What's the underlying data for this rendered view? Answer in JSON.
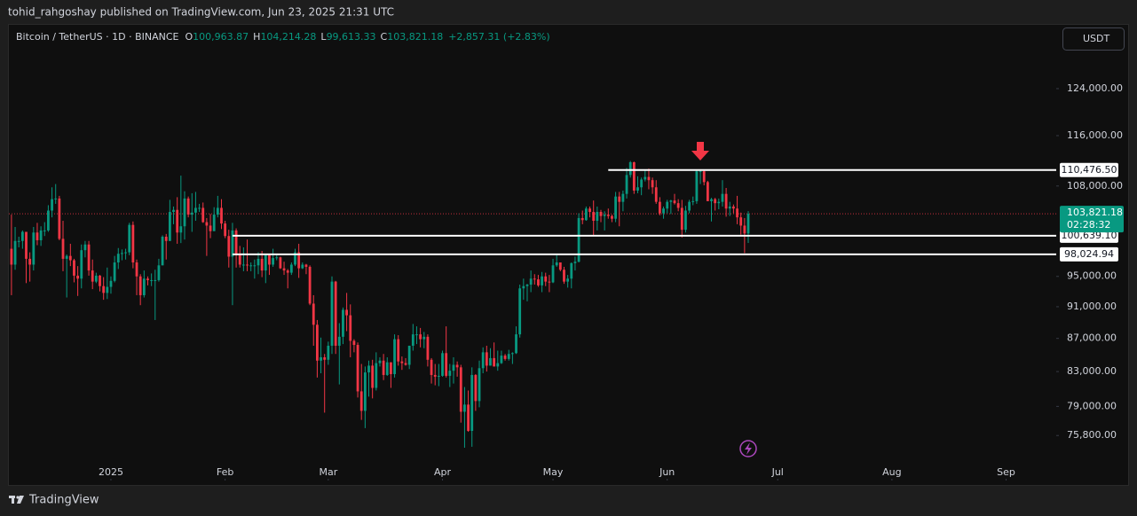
{
  "publisher": "tohid_rahgoshay published on TradingView.com, Jun 23, 2025 21:31 UTC",
  "currency": "USDT",
  "brand": "TradingView",
  "chart_data": {
    "type": "candlestick",
    "symbol": "Bitcoin / TetherUS · 1D · BINANCE",
    "fields": [
      {
        "key": "O",
        "value": "100,963.87"
      },
      {
        "key": "H",
        "value": "104,214.28"
      },
      {
        "key": "L",
        "value": "99,613.33"
      },
      {
        "key": "C",
        "value": "103,821.18"
      }
    ],
    "change": "+2,857.31 (+2.83%)",
    "up_color": "#089981",
    "down_color": "#f23645",
    "log_scale": true,
    "grid": false,
    "ylim": [
      73290,
      135750
    ],
    "yticks": [
      {
        "value": 124000,
        "label": "124,000.00"
      },
      {
        "value": 116000,
        "label": "116,000.00"
      },
      {
        "value": 108000,
        "label": "108,000.00"
      },
      {
        "value": 95000,
        "label": "95,000.00"
      },
      {
        "value": 91000,
        "label": "91,000.00"
      },
      {
        "value": 87000,
        "label": "87,000.00"
      },
      {
        "value": 83000,
        "label": "83,000.00"
      },
      {
        "value": 79000,
        "label": "79,000.00"
      },
      {
        "value": 75800,
        "label": "75,800.00"
      }
    ],
    "xlim": [
      -0.7,
      283.6
    ],
    "xticks": [
      {
        "value": 27,
        "label": "2025"
      },
      {
        "value": 58,
        "label": "Feb"
      },
      {
        "value": 86,
        "label": "Mar"
      },
      {
        "value": 117,
        "label": "Apr"
      },
      {
        "value": 147,
        "label": "May"
      },
      {
        "value": 178,
        "label": "Jun"
      },
      {
        "value": 208,
        "label": "Jul"
      },
      {
        "value": 239,
        "label": "Aug"
      },
      {
        "value": 270,
        "label": "Sep"
      }
    ],
    "levels": [
      {
        "value": 110476.5,
        "label": "110,476.50",
        "start": 162
      },
      {
        "value": 100639.1,
        "label": "100,639.10",
        "start": 60
      },
      {
        "value": 98024.94,
        "label": "98,024.94",
        "start": 60
      }
    ],
    "last_price": {
      "value": 103821.18,
      "label": "103,821.18",
      "countdown": "02:28:32"
    },
    "ohlc": [
      [
        98800,
        103700,
        92500,
        96600
      ],
      [
        96600,
        101900,
        95900,
        99900
      ],
      [
        99900,
        100500,
        99000,
        99900
      ],
      [
        99900,
        101400,
        98800,
        101200
      ],
      [
        101200,
        101200,
        94100,
        97400
      ],
      [
        97400,
        98300,
        94300,
        96600
      ],
      [
        96600,
        101900,
        95800,
        101100
      ],
      [
        101100,
        102500,
        99300,
        100000
      ],
      [
        100000,
        102000,
        99200,
        101400
      ],
      [
        101400,
        102600,
        100600,
        101400
      ],
      [
        101400,
        105100,
        101200,
        104300
      ],
      [
        104300,
        107800,
        103300,
        106000
      ],
      [
        106000,
        108300,
        105300,
        106100
      ],
      [
        106100,
        106500,
        100000,
        100200
      ],
      [
        100200,
        102800,
        95700,
        97400
      ],
      [
        97400,
        98000,
        92200,
        97800
      ],
      [
        97800,
        99500,
        96400,
        97200
      ],
      [
        97200,
        97400,
        94200,
        95100
      ],
      [
        95100,
        96400,
        92400,
        94700
      ],
      [
        94700,
        99400,
        93400,
        98600
      ],
      [
        98600,
        99900,
        97600,
        99400
      ],
      [
        99400,
        99900,
        95100,
        95800
      ],
      [
        95800,
        97300,
        93300,
        94300
      ],
      [
        94300,
        95500,
        94100,
        95100
      ],
      [
        95100,
        95200,
        93000,
        93700
      ],
      [
        93700,
        94900,
        91900,
        92800
      ],
      [
        92800,
        96200,
        92000,
        93600
      ],
      [
        93600,
        95000,
        92700,
        94400
      ],
      [
        94400,
        97800,
        94200,
        96900
      ],
      [
        96900,
        98900,
        96000,
        98100
      ],
      [
        98100,
        98700,
        97200,
        98200
      ],
      [
        98200,
        98800,
        97300,
        98300
      ],
      [
        98300,
        102500,
        97900,
        102200
      ],
      [
        102200,
        102700,
        96100,
        96900
      ],
      [
        96900,
        97300,
        92500,
        95000
      ],
      [
        95000,
        95300,
        91200,
        92500
      ],
      [
        92500,
        95800,
        92200,
        94700
      ],
      [
        94700,
        95000,
        93800,
        94500
      ],
      [
        94500,
        95400,
        93700,
        94500
      ],
      [
        94500,
        95900,
        89300,
        94500
      ],
      [
        94500,
        97400,
        94300,
        96500
      ],
      [
        96500,
        100700,
        96500,
        100500
      ],
      [
        100500,
        100900,
        97300,
        99900
      ],
      [
        99900,
        105900,
        99900,
        104100
      ],
      [
        104100,
        104900,
        102300,
        104400
      ],
      [
        104400,
        106300,
        99500,
        101100
      ],
      [
        101100,
        109600,
        99600,
        102000
      ],
      [
        102000,
        107200,
        100100,
        106100
      ],
      [
        106100,
        106400,
        103300,
        103700
      ],
      [
        103700,
        106900,
        101200,
        104000
      ],
      [
        104000,
        107100,
        102800,
        104700
      ],
      [
        104700,
        105300,
        104100,
        104700
      ],
      [
        104700,
        105500,
        102500,
        102600
      ],
      [
        102600,
        103200,
        97800,
        102100
      ],
      [
        102100,
        103800,
        100300,
        101300
      ],
      [
        101300,
        104800,
        101300,
        103700
      ],
      [
        103700,
        106500,
        103300,
        104700
      ],
      [
        104700,
        106000,
        101600,
        102400
      ],
      [
        102400,
        102800,
        100300,
        100600
      ],
      [
        100600,
        101500,
        96200,
        97700
      ],
      [
        97700,
        102500,
        91200,
        101400
      ],
      [
        101400,
        101700,
        96200,
        97900
      ],
      [
        97900,
        99200,
        96200,
        96600
      ],
      [
        96600,
        99000,
        95700,
        96600
      ],
      [
        96600,
        100100,
        95700,
        96500
      ],
      [
        96500,
        96900,
        95700,
        96500
      ],
      [
        96500,
        97300,
        94700,
        96500
      ],
      [
        96500,
        98300,
        95300,
        97400
      ],
      [
        97400,
        98500,
        94900,
        95800
      ],
      [
        95800,
        98100,
        94100,
        97900
      ],
      [
        97900,
        98000,
        95200,
        96600
      ],
      [
        96600,
        98800,
        96300,
        97500
      ],
      [
        97500,
        97900,
        97200,
        97600
      ],
      [
        97600,
        97700,
        96000,
        96100
      ],
      [
        96100,
        97000,
        95200,
        95800
      ],
      [
        95800,
        96000,
        93400,
        95500
      ],
      [
        95500,
        96900,
        95200,
        96600
      ],
      [
        96600,
        98800,
        96400,
        98300
      ],
      [
        98300,
        99500,
        94800,
        96100
      ],
      [
        96100,
        96900,
        96000,
        96600
      ],
      [
        96600,
        96700,
        95300,
        96300
      ],
      [
        96300,
        96500,
        91200,
        91400
      ],
      [
        91400,
        92500,
        86100,
        88700
      ],
      [
        88700,
        89300,
        82300,
        84300
      ],
      [
        84300,
        87100,
        82800,
        84700
      ],
      [
        84700,
        85100,
        78300,
        84400
      ],
      [
        84400,
        86600,
        83800,
        86100
      ],
      [
        86100,
        95000,
        85100,
        94300
      ],
      [
        94300,
        94400,
        85100,
        86100
      ],
      [
        86100,
        88900,
        81500,
        87200
      ],
      [
        87200,
        90900,
        86300,
        90600
      ],
      [
        90600,
        92800,
        87900,
        89900
      ],
      [
        89900,
        91300,
        84700,
        86700
      ],
      [
        86700,
        86900,
        85300,
        86200
      ],
      [
        86200,
        86500,
        80000,
        80700
      ],
      [
        80700,
        83900,
        77500,
        78500
      ],
      [
        78500,
        83600,
        76600,
        82900
      ],
      [
        82900,
        84300,
        80100,
        83700
      ],
      [
        83700,
        84400,
        79900,
        81100
      ],
      [
        81100,
        85300,
        80800,
        84000
      ],
      [
        84000,
        84700,
        83600,
        84300
      ],
      [
        84300,
        85100,
        82000,
        82600
      ],
      [
        82600,
        84700,
        82500,
        84100
      ],
      [
        84100,
        84100,
        81100,
        82700
      ],
      [
        82700,
        87500,
        82300,
        86900
      ],
      [
        86900,
        87400,
        83700,
        84200
      ],
      [
        84200,
        84800,
        83200,
        84000
      ],
      [
        84000,
        84600,
        83700,
        83800
      ],
      [
        83800,
        86100,
        83300,
        86100
      ],
      [
        86100,
        88800,
        85500,
        87500
      ],
      [
        87500,
        88500,
        86300,
        87500
      ],
      [
        87500,
        88300,
        85900,
        86900
      ],
      [
        86900,
        87800,
        85800,
        87200
      ],
      [
        87200,
        87500,
        83600,
        84400
      ],
      [
        84400,
        84600,
        81600,
        82600
      ],
      [
        82600,
        83900,
        81400,
        82400
      ],
      [
        82400,
        83900,
        81300,
        82500
      ],
      [
        82500,
        85500,
        82400,
        85200
      ],
      [
        85200,
        88500,
        82300,
        82500
      ],
      [
        82500,
        83900,
        81200,
        83100
      ],
      [
        83100,
        84700,
        81600,
        83800
      ],
      [
        83800,
        84200,
        82400,
        83500
      ],
      [
        83500,
        83800,
        77200,
        78400
      ],
      [
        78400,
        81200,
        74500,
        79200
      ],
      [
        79200,
        80800,
        76200,
        76300
      ],
      [
        76300,
        83500,
        74600,
        82600
      ],
      [
        82600,
        82700,
        78500,
        79600
      ],
      [
        79600,
        84300,
        78900,
        83400
      ],
      [
        83400,
        85900,
        82800,
        85300
      ],
      [
        85300,
        86100,
        83000,
        83700
      ],
      [
        83700,
        85800,
        83700,
        84600
      ],
      [
        84600,
        86500,
        83600,
        83600
      ],
      [
        83600,
        85500,
        83100,
        84000
      ],
      [
        84000,
        85500,
        83900,
        84900
      ],
      [
        84900,
        85100,
        84300,
        84500
      ],
      [
        84500,
        85600,
        84300,
        85100
      ],
      [
        85100,
        85300,
        83900,
        85200
      ],
      [
        85200,
        88500,
        85100,
        87500
      ],
      [
        87500,
        93900,
        87100,
        93400
      ],
      [
        93400,
        94700,
        91900,
        93700
      ],
      [
        93700,
        94000,
        91700,
        93900
      ],
      [
        93900,
        95800,
        92900,
        94700
      ],
      [
        94700,
        95300,
        93900,
        94600
      ],
      [
        94600,
        95200,
        93600,
        93800
      ],
      [
        93800,
        95600,
        92900,
        95000
      ],
      [
        95000,
        95500,
        93700,
        94300
      ],
      [
        94300,
        95200,
        92900,
        94200
      ],
      [
        94200,
        97400,
        94100,
        96500
      ],
      [
        96500,
        97900,
        96300,
        96900
      ],
      [
        96900,
        96900,
        95700,
        95900
      ],
      [
        95900,
        96300,
        94000,
        94300
      ],
      [
        94300,
        95200,
        93500,
        94700
      ],
      [
        94700,
        96900,
        93400,
        96800
      ],
      [
        96800,
        97700,
        95800,
        97000
      ],
      [
        97000,
        103900,
        96900,
        103200
      ],
      [
        103200,
        104300,
        102300,
        102900
      ],
      [
        102900,
        104900,
        102800,
        104600
      ],
      [
        104600,
        104900,
        103300,
        104100
      ],
      [
        104100,
        105800,
        100700,
        102800
      ],
      [
        102800,
        104900,
        101400,
        104100
      ],
      [
        104100,
        104400,
        102600,
        103500
      ],
      [
        103500,
        104200,
        101400,
        103700
      ],
      [
        103700,
        104600,
        103100,
        103500
      ],
      [
        103500,
        103700,
        102600,
        103100
      ],
      [
        103100,
        107100,
        102600,
        106400
      ],
      [
        106400,
        107100,
        102000,
        105600
      ],
      [
        105600,
        107300,
        104200,
        106800
      ],
      [
        106800,
        110800,
        106100,
        109700
      ],
      [
        109700,
        111900,
        109300,
        111700
      ],
      [
        111700,
        111800,
        106800,
        107300
      ],
      [
        107300,
        109500,
        106900,
        107800
      ],
      [
        107800,
        109300,
        106600,
        109000
      ],
      [
        109000,
        110400,
        108700,
        109400
      ],
      [
        109400,
        110700,
        107500,
        108900
      ],
      [
        108900,
        109300,
        106800,
        107800
      ],
      [
        107800,
        108900,
        105300,
        105600
      ],
      [
        105600,
        106300,
        103600,
        103900
      ],
      [
        103900,
        104900,
        103100,
        104600
      ],
      [
        104600,
        105900,
        103900,
        105600
      ],
      [
        105600,
        105900,
        103800,
        105800
      ],
      [
        105800,
        106800,
        105200,
        105400
      ],
      [
        105400,
        106000,
        104200,
        104700
      ],
      [
        104700,
        105900,
        100400,
        101500
      ],
      [
        101500,
        105000,
        101100,
        104300
      ],
      [
        104300,
        105900,
        103900,
        105600
      ],
      [
        105600,
        106400,
        105100,
        105700
      ],
      [
        105700,
        110500,
        105300,
        110300
      ],
      [
        110300,
        110400,
        108300,
        110300
      ],
      [
        110300,
        110400,
        108100,
        108600
      ],
      [
        108600,
        108800,
        105700,
        105700
      ],
      [
        105700,
        106200,
        102700,
        106000
      ],
      [
        106000,
        106200,
        104300,
        105400
      ],
      [
        105400,
        106100,
        104500,
        105600
      ],
      [
        105600,
        108900,
        104900,
        106800
      ],
      [
        106800,
        107700,
        103400,
        104600
      ],
      [
        104600,
        105600,
        103500,
        104900
      ],
      [
        104900,
        105200,
        103900,
        104600
      ],
      [
        104600,
        106500,
        102300,
        103300
      ],
      [
        103300,
        104000,
        100800,
        102100
      ],
      [
        102100,
        103200,
        98200,
        100963.87
      ],
      [
        100963.87,
        104214.28,
        99613.33,
        103821.18
      ]
    ]
  }
}
